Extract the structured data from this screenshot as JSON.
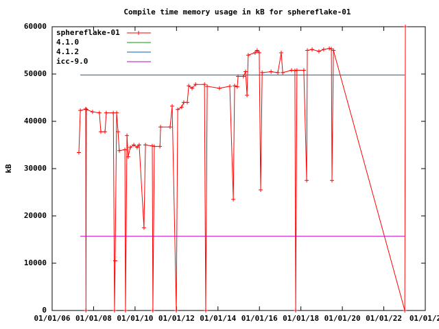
{
  "chart_data": {
    "type": "line",
    "title": "Compile time memory usage in kB for sphereflake-01",
    "y_label": "kB",
    "xlim": [
      2006,
      2024
    ],
    "xticks": [
      {
        "value": 2006,
        "label": "01/01/06"
      },
      {
        "value": 2008,
        "label": "01/01/08"
      },
      {
        "value": 2010,
        "label": "01/01/10"
      },
      {
        "value": 2012,
        "label": "01/01/12"
      },
      {
        "value": 2014,
        "label": "01/01/14"
      },
      {
        "value": 2016,
        "label": "01/01/16"
      },
      {
        "value": 2018,
        "label": "01/01/18"
      },
      {
        "value": 2020,
        "label": "01/01/20"
      },
      {
        "value": 2022,
        "label": "01/01/22"
      },
      {
        "value": 2024,
        "label": "01/01/2"
      }
    ],
    "ylim": [
      0,
      60000
    ],
    "yticks": [
      0,
      10000,
      20000,
      30000,
      40000,
      50000,
      60000
    ],
    "grid": false,
    "legend": "top-left",
    "series": [
      {
        "name": "sphereflake-01",
        "color": "#ff0000",
        "markers": true,
        "x": [
          2007.29,
          2007.36,
          2007.62,
          2007.63,
          2007.65,
          2007.95,
          2008.28,
          2008.35,
          2008.55,
          2008.61,
          2008.95,
          2009.01,
          2009.04,
          2009.11,
          2009.18,
          2009.24,
          2009.51,
          2009.54,
          2009.61,
          2009.67,
          2009.77,
          2009.94,
          2010.1,
          2010.2,
          2010.43,
          2010.5,
          2010.83,
          2010.86,
          2010.93,
          2011.2,
          2011.23,
          2011.69,
          2011.79,
          2011.99,
          2012.06,
          2012.25,
          2012.35,
          2012.52,
          2012.59,
          2012.75,
          2012.92,
          2013.35,
          2013.41,
          2013.48,
          2014.07,
          2014.57,
          2014.74,
          2014.8,
          2014.93,
          2014.97,
          2015.23,
          2015.33,
          2015.4,
          2015.46,
          2015.79,
          2015.89,
          2015.99,
          2016.06,
          2016.13,
          2016.56,
          2016.89,
          2017.05,
          2017.12,
          2017.55,
          2017.71,
          2017.75,
          2017.81,
          2018.14,
          2018.28,
          2018.31,
          2018.54,
          2018.87,
          2019.1,
          2019.37,
          2019.47,
          2019.5,
          2019.57,
          2023.01,
          2023.04
        ],
        "values": [
          33400,
          42300,
          42600,
          0,
          42500,
          42000,
          41800,
          37800,
          37800,
          41800,
          41800,
          0,
          10500,
          41800,
          37800,
          33800,
          34000,
          0,
          37000,
          32500,
          34500,
          35000,
          34500,
          35000,
          17500,
          35000,
          34800,
          0,
          34700,
          34700,
          38800,
          38800,
          43200,
          0,
          42500,
          43000,
          44000,
          44000,
          47500,
          47000,
          47800,
          47800,
          0,
          47400,
          47000,
          47400,
          23500,
          47500,
          47300,
          49500,
          49500,
          50500,
          45500,
          54000,
          54500,
          55000,
          54500,
          25500,
          50300,
          50500,
          50300,
          54500,
          50300,
          50800,
          50700,
          0,
          50800,
          50800,
          27500,
          55000,
          55200,
          54800,
          55200,
          55400,
          55300,
          27500,
          55000,
          0,
          60000
        ]
      },
      {
        "name": "4.1.0",
        "color": "#00a000",
        "x": [],
        "values": []
      },
      {
        "name": "4.1.2",
        "color": "#0060c0",
        "x": [
          2007.36,
          2023.01
        ],
        "values": [
          49800,
          49800
        ]
      },
      {
        "name": "icc-9.0",
        "color": "#c000c0",
        "x": [
          2007.36,
          2023.01
        ],
        "values": [
          15700,
          15700
        ]
      }
    ]
  }
}
